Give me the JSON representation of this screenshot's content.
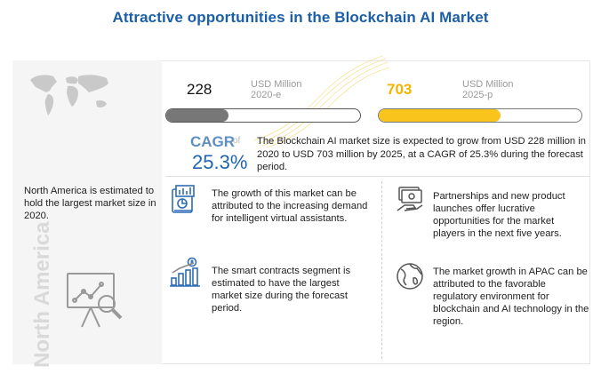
{
  "title": "Attractive opportunities in the Blockchain AI  Market",
  "left_panel": {
    "text": "North America is estimated to hold the largest market size in 2020.",
    "vertical_label": "North America"
  },
  "stats": {
    "start": {
      "value": "228",
      "unit_line1": "USD Million",
      "unit_line2": "2020-e",
      "bar_fill": 0.32
    },
    "end": {
      "value": "703",
      "unit_line1": "USD Million",
      "unit_line2": "2025-p",
      "bar_fill": 0.6
    }
  },
  "cagr": {
    "label": "CAGR",
    "of": "of",
    "value": "25.3%",
    "text": "The Blockchain AI market size is expected to grow from USD 228 million in 2020 to USD 703 million by 2025, at a CAGR of 25.3% during the forecast period."
  },
  "insights": [
    {
      "icon": "analytics-device-icon",
      "text": "The growth of this market can be attributed to the increasing demand for intelligent virtual assistants."
    },
    {
      "icon": "money-hand-icon",
      "text": "Partnerships and new product launches offer lucrative opportunities for the market players in the  next  five years."
    },
    {
      "icon": "bar-growth-icon",
      "text": "The smart contracts segment is estimated to have the largest market size during the forecast period."
    },
    {
      "icon": "globe-icon",
      "text": "The market growth in APAC can be attributed to the favorable regulatory environment for blockchain and AI technology in the region."
    }
  ],
  "colors": {
    "title": "#1a5fa8",
    "accent_yellow": "#f9c51c",
    "bar_gray": "#777777",
    "cagr_blue": "#1f64b0"
  }
}
